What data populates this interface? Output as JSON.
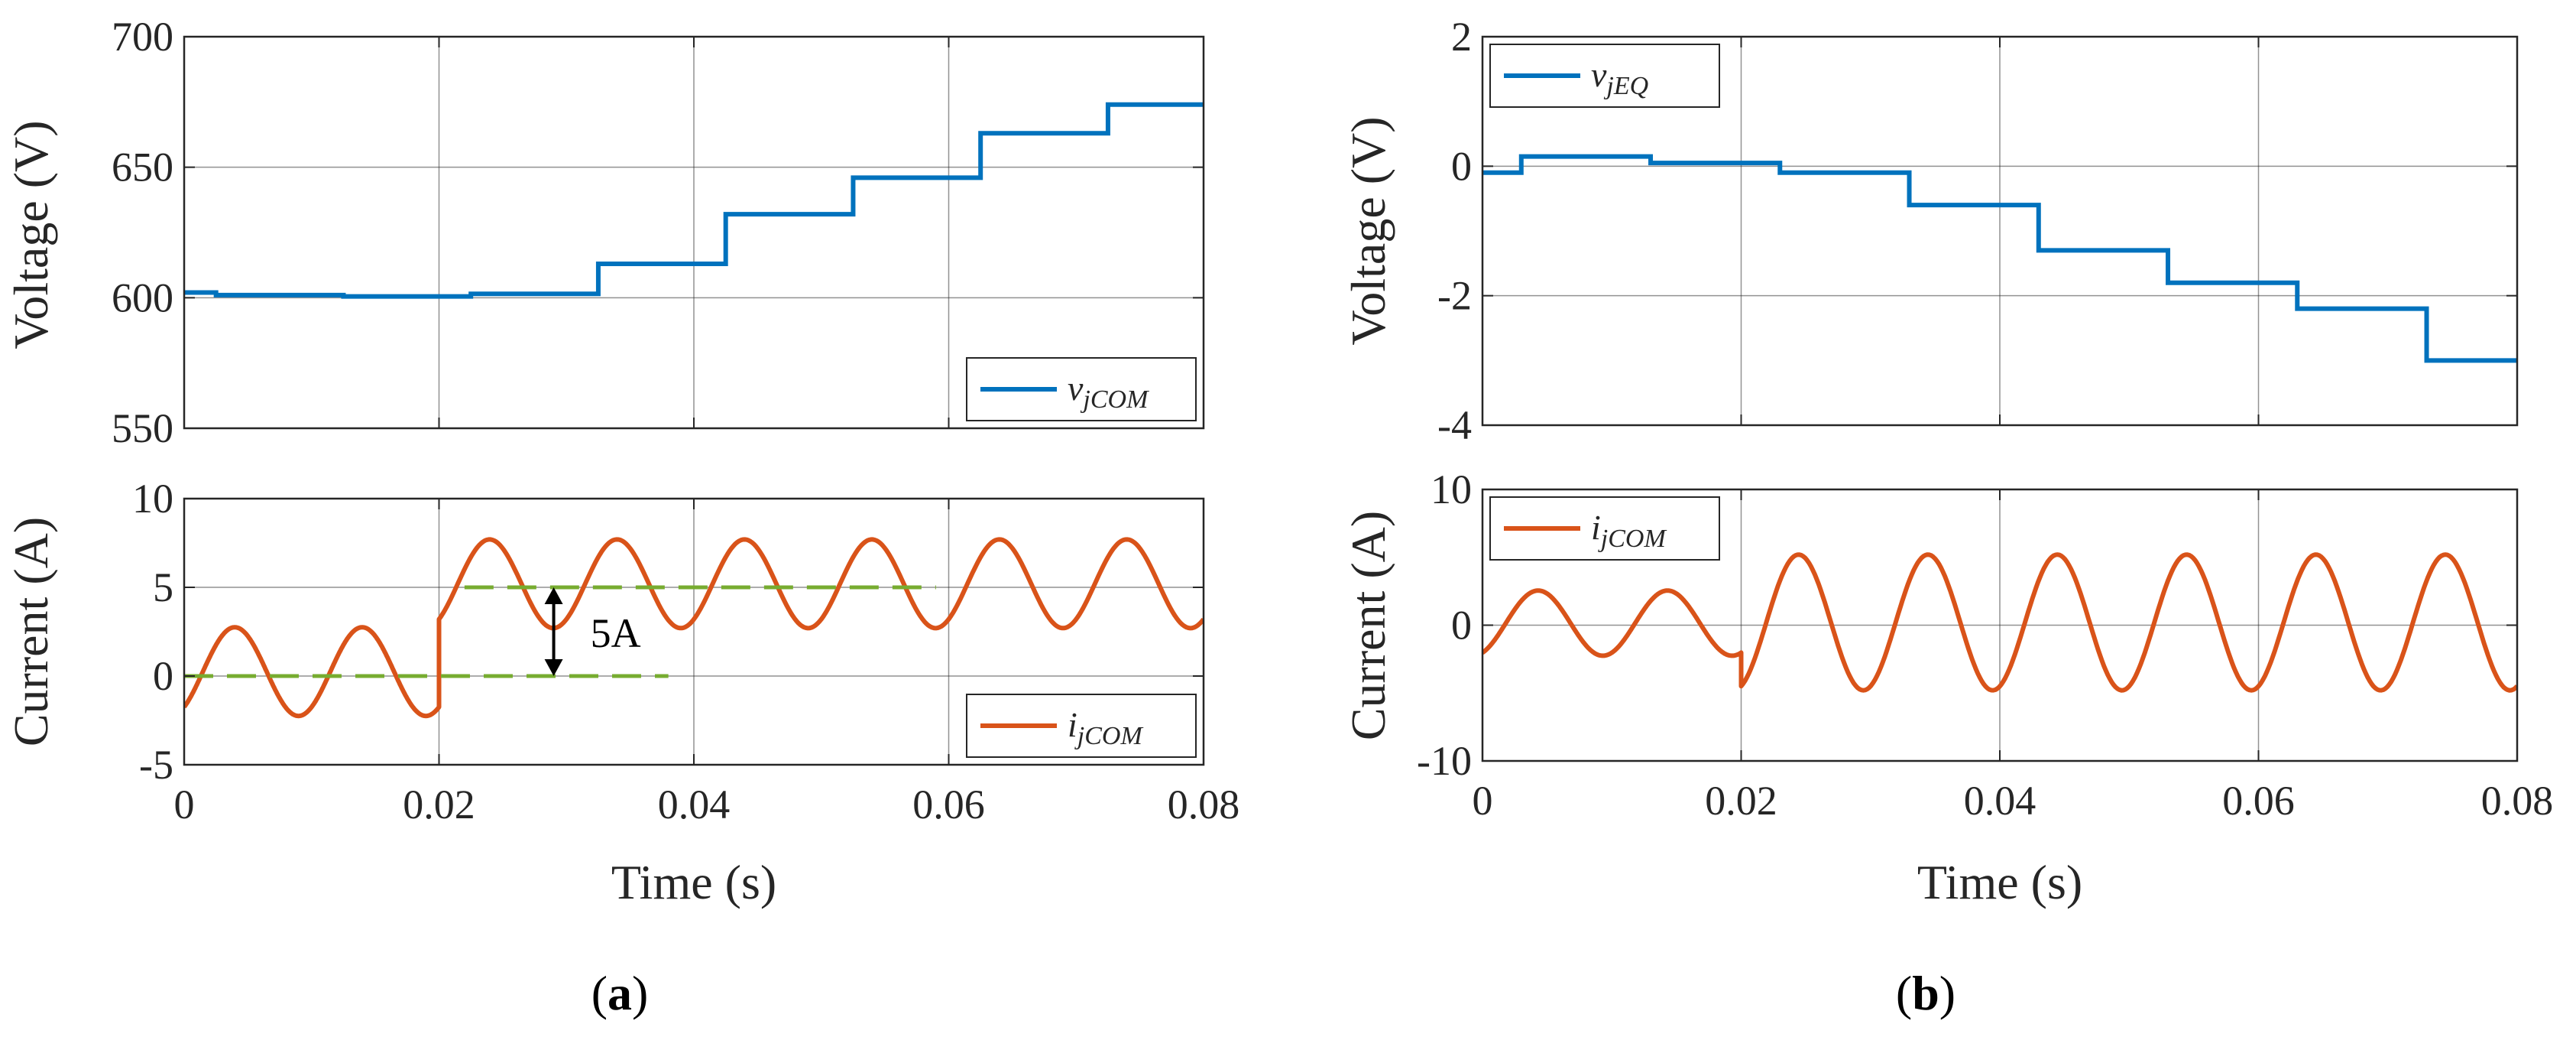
{
  "figure": {
    "panel_a": {
      "open": "(",
      "letter": "a",
      "close": ")"
    },
    "panel_b": {
      "open": "(",
      "letter": "b",
      "close": ")"
    }
  },
  "colors": {
    "blue": "#0072BD",
    "orange": "#D95319",
    "green_dash": "#77AC30",
    "grid": "#262626"
  },
  "chart_data": [
    {
      "id": "a_top",
      "type": "line",
      "ylabel": "Voltage (V)",
      "xlabel": "",
      "xlim": [
        0,
        0.08
      ],
      "ylim": [
        550,
        700
      ],
      "xticks": [
        0,
        0.02,
        0.04,
        0.06,
        0.08
      ],
      "yticks": [
        550,
        600,
        650,
        700
      ],
      "xticklabels": [],
      "yticklabels": [
        "550",
        "600",
        "650",
        "700"
      ],
      "grid": true,
      "legend": {
        "position": "bottom-right",
        "main": "v",
        "sub": "jCOM"
      },
      "series": [
        {
          "name": "vjCOM",
          "kind": "step",
          "color": "blue",
          "x": [
            0,
            0.0025,
            0.0125,
            0.0225,
            0.0325,
            0.0425,
            0.0525,
            0.0625,
            0.0725,
            0.08
          ],
          "values": [
            602,
            601,
            600.5,
            601.5,
            613,
            632,
            646,
            663,
            674,
            674
          ]
        }
      ]
    },
    {
      "id": "a_bottom",
      "type": "line",
      "ylabel": "Current  (A)",
      "xlabel": "Time (s)",
      "xlim": [
        0,
        0.08
      ],
      "ylim": [
        -5,
        10
      ],
      "xticks": [
        0,
        0.02,
        0.04,
        0.06,
        0.08
      ],
      "yticks": [
        -5,
        0,
        5,
        10
      ],
      "xticklabels": [
        "0",
        "0.02",
        "0.04",
        "0.06",
        "0.08"
      ],
      "yticklabels": [
        "-5",
        "0",
        "5",
        "10"
      ],
      "grid": true,
      "legend": {
        "position": "bottom-right",
        "main": "i",
        "sub": "jCOM"
      },
      "annotation": {
        "text": "5A",
        "x": 0.029,
        "y_from": 0,
        "y_to": 5
      },
      "series": [
        {
          "name": "ijCOM",
          "kind": "sine",
          "color": "orange",
          "segments": [
            {
              "x0": 0,
              "x1": 0.02,
              "offset": 0.25,
              "amplitude": 2.5,
              "frequency_hz": 100,
              "phase_deg": -53
            },
            {
              "x0": 0.02,
              "x1": 0.08,
              "offset": 5.2,
              "amplitude": 2.5,
              "frequency_hz": 100,
              "phase_deg": -53
            }
          ]
        },
        {
          "name": "level_0",
          "kind": "hline",
          "color": "green_dash",
          "x": [
            0,
            0.038
          ],
          "value": 0
        },
        {
          "name": "level_5",
          "kind": "hline",
          "color": "green_dash",
          "x": [
            0.022,
            0.059
          ],
          "value": 5
        }
      ]
    },
    {
      "id": "b_top",
      "type": "line",
      "ylabel": "Voltage  (V)",
      "xlabel": "",
      "xlim": [
        0,
        0.08
      ],
      "ylim": [
        -4,
        2
      ],
      "xticks": [
        0,
        0.02,
        0.04,
        0.06,
        0.08
      ],
      "yticks": [
        -4,
        -2,
        0,
        2
      ],
      "xticklabels": [],
      "yticklabels": [
        "-4",
        "-2",
        "0",
        "2"
      ],
      "grid": true,
      "legend": {
        "position": "top-left",
        "main": "v",
        "sub": "jEQ"
      },
      "series": [
        {
          "name": "vjEQ",
          "kind": "step",
          "color": "blue",
          "x": [
            0,
            0.003,
            0.013,
            0.023,
            0.033,
            0.043,
            0.053,
            0.063,
            0.073,
            0.08
          ],
          "values": [
            -0.1,
            0.15,
            0.05,
            -0.1,
            -0.6,
            -1.3,
            -1.8,
            -2.2,
            -3.0,
            -3.0
          ]
        }
      ]
    },
    {
      "id": "b_bottom",
      "type": "line",
      "ylabel": "Current  (A)",
      "xlabel": "Time (s)",
      "xlim": [
        0,
        0.08
      ],
      "ylim": [
        -10,
        10
      ],
      "xticks": [
        0,
        0.02,
        0.04,
        0.06,
        0.08
      ],
      "yticks": [
        -10,
        0,
        10
      ],
      "xticklabels": [
        "0",
        "0.02",
        "0.04",
        "0.06",
        "0.08"
      ],
      "yticklabels": [
        "-10",
        "0",
        "10"
      ],
      "grid": true,
      "legend": {
        "position": "top-left",
        "main": "i",
        "sub": "jCOM"
      },
      "series": [
        {
          "name": "ijCOM",
          "kind": "sine",
          "color": "orange",
          "segments": [
            {
              "x0": 0,
              "x1": 0.02,
              "offset": 0.15,
              "amplitude": 2.4,
              "frequency_hz": 100,
              "phase_deg": -65
            },
            {
              "x0": 0.02,
              "x1": 0.08,
              "offset": 0.2,
              "amplitude": 5.0,
              "frequency_hz": 100,
              "phase_deg": -70
            }
          ]
        }
      ]
    }
  ]
}
